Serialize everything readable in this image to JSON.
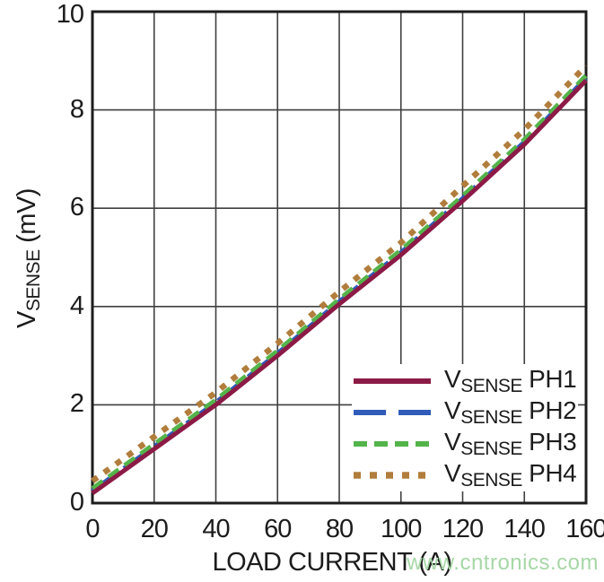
{
  "chart_data": {
    "type": "line",
    "title": "",
    "xlabel": "LOAD CURRENT (A)",
    "ylabel": "VSENSE (mV)",
    "xlim": [
      0,
      160
    ],
    "ylim": [
      0,
      10
    ],
    "xticks": [
      0,
      20,
      40,
      60,
      80,
      100,
      120,
      140,
      160
    ],
    "yticks": [
      0,
      2,
      4,
      6,
      8,
      10
    ],
    "grid": true,
    "legend_position": "lower-right",
    "axis_color": "#1d1d1d",
    "grid_color": "#3f3f3f",
    "x": [
      0,
      20,
      40,
      60,
      80,
      100,
      120,
      140,
      160
    ],
    "series": [
      {
        "name": "VSENSE PH1",
        "label": {
          "prefix": "V",
          "sub": "SENSE",
          "suffix": " PH1"
        },
        "color": "#8C1A46",
        "dash": "",
        "legend_dash": "",
        "width": 5,
        "values": [
          0.2,
          1.1,
          2.0,
          3.0,
          4.05,
          5.05,
          6.15,
          7.3,
          8.6
        ]
      },
      {
        "name": "VSENSE PH2",
        "label": {
          "prefix": "V",
          "sub": "SENSE",
          "suffix": " PH2"
        },
        "color": "#2F5CB8",
        "dash": "30 13",
        "legend_dash": "36 14",
        "width": 5,
        "values": [
          0.25,
          1.15,
          2.05,
          3.05,
          4.1,
          5.1,
          6.2,
          7.35,
          8.65
        ]
      },
      {
        "name": "VSENSE PH3",
        "label": {
          "prefix": "V",
          "sub": "SENSE",
          "suffix": " PH3"
        },
        "color": "#53B44A",
        "dash": "14 8",
        "legend_dash": "15 8",
        "width": 5,
        "values": [
          0.3,
          1.2,
          2.1,
          3.1,
          4.15,
          5.15,
          6.25,
          7.4,
          8.7
        ]
      },
      {
        "name": "VSENSE PH4",
        "label": {
          "prefix": "V",
          "sub": "SENSE",
          "suffix": " PH4"
        },
        "color": "#B17D3C",
        "dash": "7 9",
        "legend_dash": "8 10",
        "width": 6.5,
        "values": [
          0.45,
          1.35,
          2.25,
          3.25,
          4.3,
          5.3,
          6.45,
          7.6,
          8.9
        ]
      }
    ]
  },
  "y_axis_title": {
    "prefix": "V",
    "sub": "SENSE",
    "suffix": " (mV)"
  },
  "x_axis_title": "LOAD CURRENT (A)",
  "watermark": {
    "text": "www.cntronics.com",
    "color": "#A7D7A7"
  }
}
